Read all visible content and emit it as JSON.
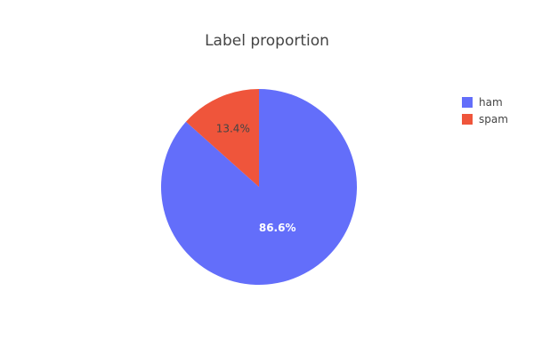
{
  "chart_data": {
    "type": "pie",
    "title": "Label proportion",
    "slices": [
      {
        "label": "ham",
        "value": 86.6,
        "text": "86.6%",
        "color": "#636efa",
        "text_color": "#ffffff"
      },
      {
        "label": "spam",
        "value": 13.4,
        "text": "13.4%",
        "color": "#ef553b",
        "text_color": "#444444"
      }
    ],
    "legend": {
      "position": "top-right",
      "entries": [
        "ham",
        "spam"
      ]
    },
    "direction": "clockwise",
    "start_angle_deg": 90
  }
}
